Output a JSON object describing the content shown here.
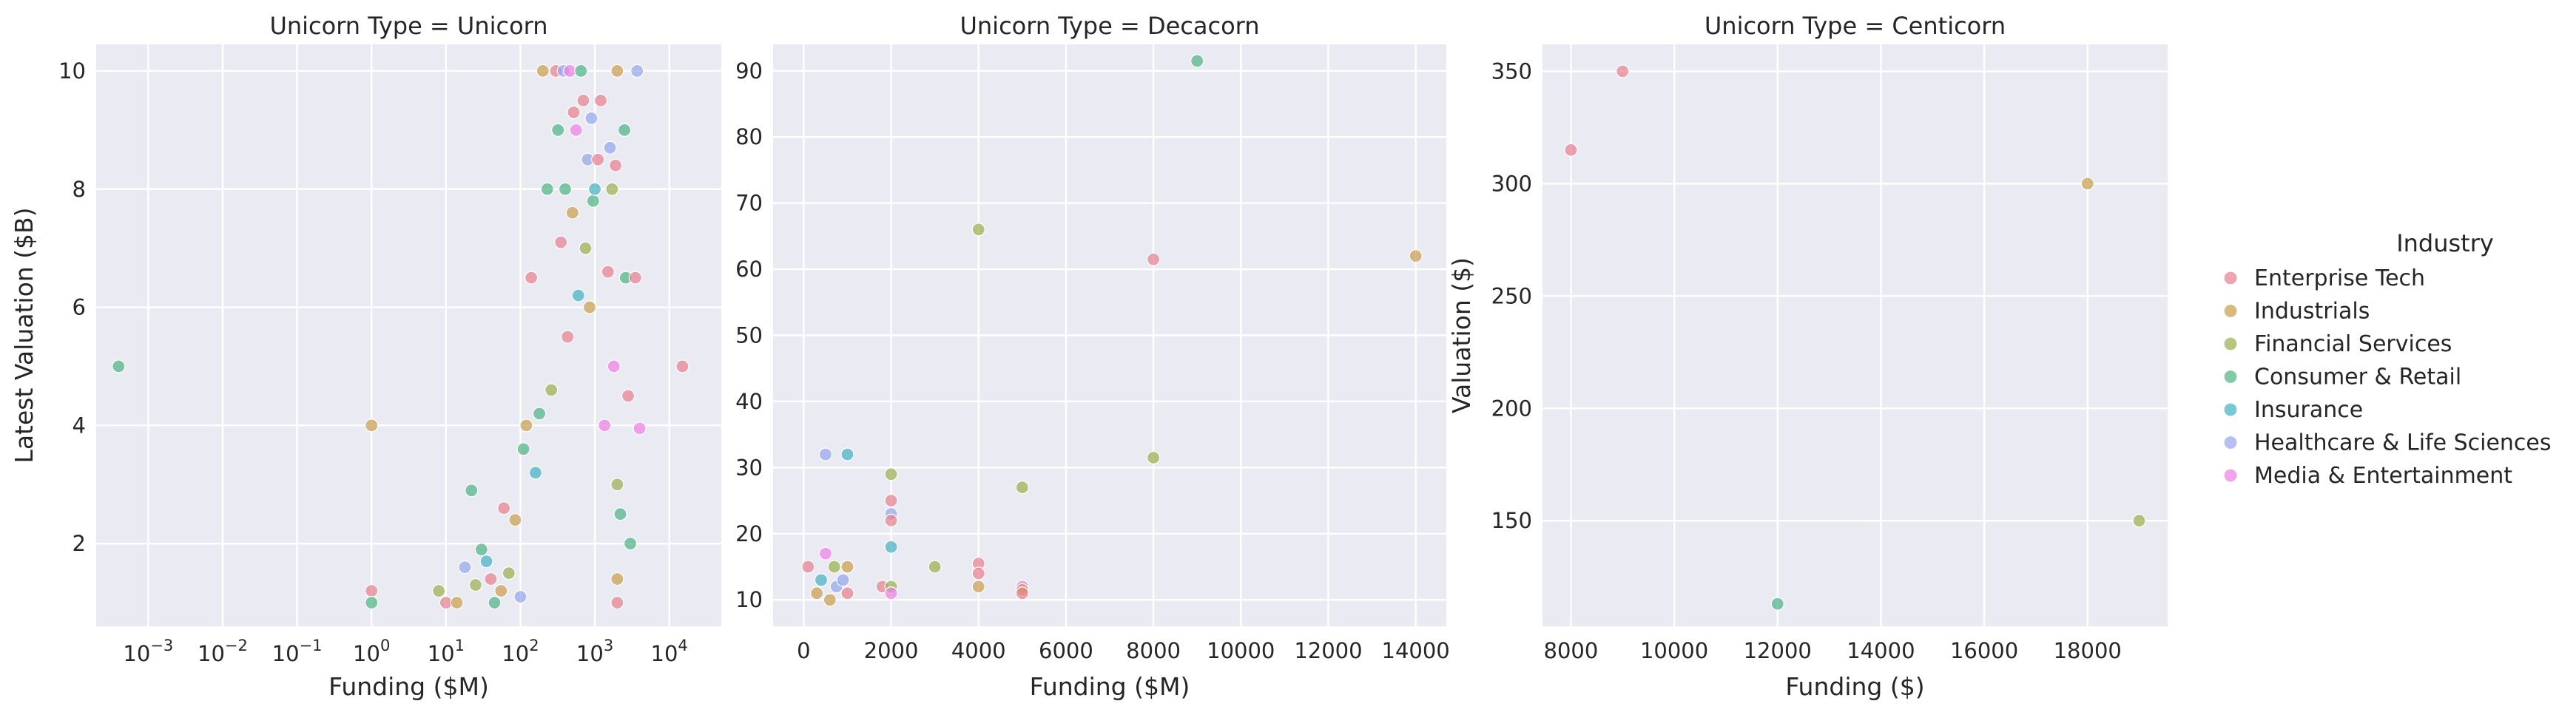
{
  "legend": {
    "title": "Industry",
    "items": [
      {
        "label": "Enterprise Tech",
        "color": "#e8828f"
      },
      {
        "label": "Industrials",
        "color": "#c9a04e"
      },
      {
        "label": "Financial Services",
        "color": "#98b24d"
      },
      {
        "label": "Consumer & Retail",
        "color": "#4fb587"
      },
      {
        "label": "Insurance",
        "color": "#47b2c4"
      },
      {
        "label": "Healthcare & Life Sciences",
        "color": "#96a8ec"
      },
      {
        "label": "Media & Entertainment",
        "color": "#ee7fe4"
      }
    ]
  },
  "chart_data": [
    {
      "type": "scatter",
      "title": "Unicorn Type = Unicorn",
      "xlabel": "Funding ($M)",
      "ylabel": "Latest Valuation ($B)",
      "xscale": "log",
      "xlim": [
        0.0002,
        50000
      ],
      "ylim": [
        0.6,
        10.45
      ],
      "xticks": [
        0.001,
        0.01,
        0.1,
        1,
        10,
        100,
        1000,
        10000
      ],
      "xticklabels": [
        "10^-3",
        "10^-2",
        "10^-1",
        "10^0",
        "10^1",
        "10^2",
        "10^3",
        "10^4"
      ],
      "yticks": [
        2,
        4,
        6,
        8,
        10
      ],
      "grid": true,
      "points": [
        {
          "x": 0.0004,
          "y": 5,
          "c": 3
        },
        {
          "x": 1,
          "y": 4,
          "c": 1
        },
        {
          "x": 1,
          "y": 1.2,
          "c": 0
        },
        {
          "x": 1,
          "y": 1,
          "c": 3
        },
        {
          "x": 8,
          "y": 1.2,
          "c": 2
        },
        {
          "x": 10,
          "y": 1,
          "c": 0
        },
        {
          "x": 14,
          "y": 1,
          "c": 1
        },
        {
          "x": 18,
          "y": 1.6,
          "c": 5
        },
        {
          "x": 22,
          "y": 2.9,
          "c": 3
        },
        {
          "x": 25,
          "y": 1.3,
          "c": 2
        },
        {
          "x": 30,
          "y": 1.9,
          "c": 3
        },
        {
          "x": 35,
          "y": 1.7,
          "c": 4
        },
        {
          "x": 40,
          "y": 1.4,
          "c": 0
        },
        {
          "x": 45,
          "y": 1,
          "c": 3
        },
        {
          "x": 55,
          "y": 1.2,
          "c": 1
        },
        {
          "x": 60,
          "y": 2.6,
          "c": 0
        },
        {
          "x": 70,
          "y": 1.5,
          "c": 2
        },
        {
          "x": 85,
          "y": 2.4,
          "c": 1
        },
        {
          "x": 100,
          "y": 1.1,
          "c": 5
        },
        {
          "x": 110,
          "y": 3.6,
          "c": 3
        },
        {
          "x": 120,
          "y": 4,
          "c": 1
        },
        {
          "x": 140,
          "y": 6.5,
          "c": 0
        },
        {
          "x": 160,
          "y": 3.2,
          "c": 4
        },
        {
          "x": 180,
          "y": 4.2,
          "c": 3
        },
        {
          "x": 200,
          "y": 10,
          "c": 1
        },
        {
          "x": 230,
          "y": 8,
          "c": 3
        },
        {
          "x": 260,
          "y": 4.6,
          "c": 2
        },
        {
          "x": 300,
          "y": 10,
          "c": 0
        },
        {
          "x": 320,
          "y": 9,
          "c": 3
        },
        {
          "x": 350,
          "y": 7.1,
          "c": 0
        },
        {
          "x": 380,
          "y": 10,
          "c": 5
        },
        {
          "x": 400,
          "y": 8,
          "c": 3
        },
        {
          "x": 430,
          "y": 5.5,
          "c": 0
        },
        {
          "x": 460,
          "y": 10,
          "c": 6
        },
        {
          "x": 500,
          "y": 7.6,
          "c": 1
        },
        {
          "x": 520,
          "y": 9.3,
          "c": 0
        },
        {
          "x": 560,
          "y": 9,
          "c": 6
        },
        {
          "x": 600,
          "y": 6.2,
          "c": 4
        },
        {
          "x": 650,
          "y": 10,
          "c": 3
        },
        {
          "x": 700,
          "y": 9.5,
          "c": 0
        },
        {
          "x": 750,
          "y": 7,
          "c": 2
        },
        {
          "x": 800,
          "y": 8.5,
          "c": 5
        },
        {
          "x": 850,
          "y": 6,
          "c": 1
        },
        {
          "x": 900,
          "y": 9.2,
          "c": 5
        },
        {
          "x": 950,
          "y": 7.8,
          "c": 3
        },
        {
          "x": 1000,
          "y": 8,
          "c": 4
        },
        {
          "x": 1100,
          "y": 8.5,
          "c": 0
        },
        {
          "x": 1200,
          "y": 9.5,
          "c": 0
        },
        {
          "x": 1350,
          "y": 4,
          "c": 6
        },
        {
          "x": 1500,
          "y": 6.6,
          "c": 0
        },
        {
          "x": 1600,
          "y": 8.7,
          "c": 5
        },
        {
          "x": 1700,
          "y": 8,
          "c": 2
        },
        {
          "x": 1800,
          "y": 5,
          "c": 6
        },
        {
          "x": 1900,
          "y": 8.4,
          "c": 0
        },
        {
          "x": 2000,
          "y": 10,
          "c": 1
        },
        {
          "x": 2200,
          "y": 2.5,
          "c": 3
        },
        {
          "x": 2500,
          "y": 9,
          "c": 3
        },
        {
          "x": 2600,
          "y": 6.5,
          "c": 3
        },
        {
          "x": 2800,
          "y": 4.5,
          "c": 0
        },
        {
          "x": 3000,
          "y": 2,
          "c": 3
        },
        {
          "x": 3500,
          "y": 6.5,
          "c": 0
        },
        {
          "x": 3700,
          "y": 10,
          "c": 5
        },
        {
          "x": 4000,
          "y": 3.95,
          "c": 6
        },
        {
          "x": 15000,
          "y": 5,
          "c": 0
        },
        {
          "x": 2000,
          "y": 1,
          "c": 0
        },
        {
          "x": 2000,
          "y": 1.4,
          "c": 1
        },
        {
          "x": 2000,
          "y": 3,
          "c": 2
        }
      ]
    },
    {
      "type": "scatter",
      "title": "Unicorn Type = Decacorn",
      "xlabel": "Funding ($M)",
      "ylabel": "",
      "xlim": [
        -700,
        14700
      ],
      "ylim": [
        6,
        94
      ],
      "xticks": [
        0,
        2000,
        4000,
        6000,
        8000,
        10000,
        12000,
        14000
      ],
      "yticks": [
        10,
        20,
        30,
        40,
        50,
        60,
        70,
        80,
        90
      ],
      "grid": true,
      "points": [
        {
          "x": 100,
          "y": 15,
          "c": 0
        },
        {
          "x": 300,
          "y": 11,
          "c": 1
        },
        {
          "x": 400,
          "y": 13,
          "c": 4
        },
        {
          "x": 500,
          "y": 17,
          "c": 6
        },
        {
          "x": 500,
          "y": 32,
          "c": 5
        },
        {
          "x": 600,
          "y": 10,
          "c": 1
        },
        {
          "x": 700,
          "y": 15,
          "c": 2
        },
        {
          "x": 750,
          "y": 12,
          "c": 5
        },
        {
          "x": 900,
          "y": 13,
          "c": 5
        },
        {
          "x": 1000,
          "y": 15,
          "c": 1
        },
        {
          "x": 1000,
          "y": 11,
          "c": 0
        },
        {
          "x": 1000,
          "y": 32,
          "c": 4
        },
        {
          "x": 1800,
          "y": 12,
          "c": 0
        },
        {
          "x": 2000,
          "y": 29,
          "c": 2
        },
        {
          "x": 2000,
          "y": 25,
          "c": 0
        },
        {
          "x": 2000,
          "y": 23,
          "c": 5
        },
        {
          "x": 2000,
          "y": 22,
          "c": 0
        },
        {
          "x": 2000,
          "y": 18,
          "c": 4
        },
        {
          "x": 2000,
          "y": 12,
          "c": 2
        },
        {
          "x": 2000,
          "y": 11,
          "c": 6
        },
        {
          "x": 3000,
          "y": 15,
          "c": 2
        },
        {
          "x": 4000,
          "y": 66,
          "c": 2
        },
        {
          "x": 4000,
          "y": 15.5,
          "c": 0
        },
        {
          "x": 4000,
          "y": 14,
          "c": 0
        },
        {
          "x": 4000,
          "y": 12,
          "c": 1
        },
        {
          "x": 5000,
          "y": 27,
          "c": 2
        },
        {
          "x": 5000,
          "y": 12,
          "c": 6
        },
        {
          "x": 5000,
          "y": 11.5,
          "c": 1
        },
        {
          "x": 5000,
          "y": 11,
          "c": 0
        },
        {
          "x": 8000,
          "y": 61.5,
          "c": 0
        },
        {
          "x": 8000,
          "y": 31.5,
          "c": 2
        },
        {
          "x": 9000,
          "y": 91.5,
          "c": 3
        },
        {
          "x": 14000,
          "y": 62,
          "c": 1
        }
      ]
    },
    {
      "type": "scatter",
      "title": "Unicorn Type = Centicorn",
      "xlabel": "Funding ($)",
      "ylabel": "Valuation ($)",
      "xlim": [
        7450,
        19550
      ],
      "ylim": [
        103,
        362
      ],
      "xticks": [
        8000,
        10000,
        12000,
        14000,
        16000,
        18000
      ],
      "yticks": [
        150,
        200,
        250,
        300,
        350
      ],
      "grid": true,
      "points": [
        {
          "x": 8000,
          "y": 315,
          "c": 0
        },
        {
          "x": 9000,
          "y": 350,
          "c": 0
        },
        {
          "x": 12000,
          "y": 113,
          "c": 3
        },
        {
          "x": 18000,
          "y": 300,
          "c": 1
        },
        {
          "x": 19000,
          "y": 150,
          "c": 2
        }
      ]
    }
  ]
}
